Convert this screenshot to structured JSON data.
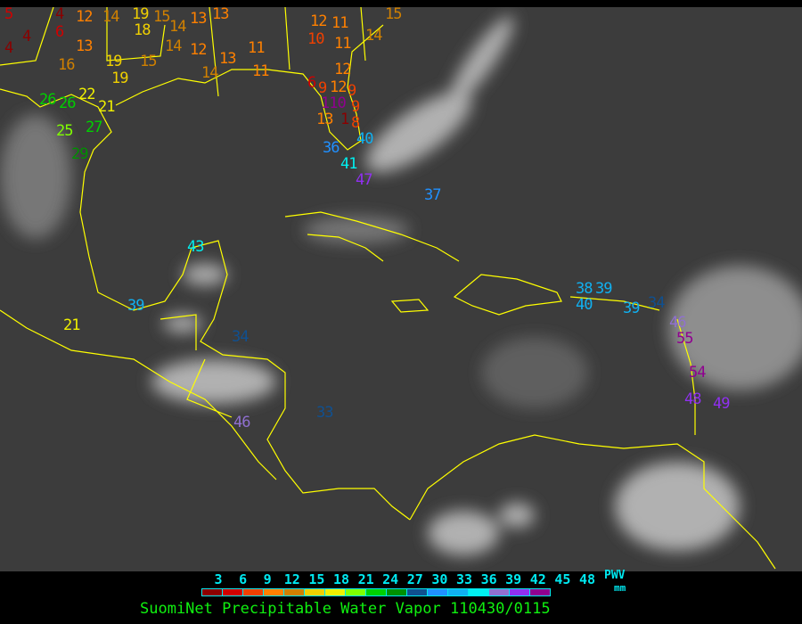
{
  "title": "SuomiNet Precipitable Water Vapor 110430/0115",
  "legend": {
    "unit_top": "PWV",
    "unit_bottom": "mm",
    "ticks": [
      "3",
      "6",
      "9",
      "12",
      "15",
      "18",
      "21",
      "24",
      "27",
      "30",
      "33",
      "36",
      "39",
      "42",
      "45",
      "48"
    ],
    "colors": [
      "#8b0000",
      "#d00000",
      "#f04000",
      "#ff8000",
      "#d08000",
      "#f0d000",
      "#f0f000",
      "#80ff00",
      "#00d000",
      "#009000",
      "#105090",
      "#2090ff",
      "#10b0f0",
      "#00f0f0",
      "#9070d0",
      "#9030f0",
      "#900090"
    ]
  },
  "map": {
    "background": "#3c3c3c",
    "border_color": "#ffff00",
    "stations": [
      "5",
      "4",
      "4",
      "4",
      "6",
      "12",
      "14",
      "19",
      "13",
      "16",
      "19",
      "19",
      "15",
      "18",
      "15",
      "14",
      "14",
      "12",
      "13",
      "13",
      "14",
      "13",
      "11",
      "11",
      "12",
      "10",
      "11",
      "11",
      "14",
      "15",
      "12",
      "6",
      "9",
      "12",
      "9",
      "110",
      "9",
      "8",
      "13",
      "1",
      "26",
      "26",
      "22",
      "21",
      "25",
      "27",
      "29",
      "36",
      "41",
      "40",
      "47",
      "37",
      "43",
      "39",
      "21",
      "34",
      "46",
      "33",
      "38",
      "40",
      "39",
      "39",
      "34",
      "46",
      "55",
      "54",
      "48",
      "49"
    ]
  }
}
